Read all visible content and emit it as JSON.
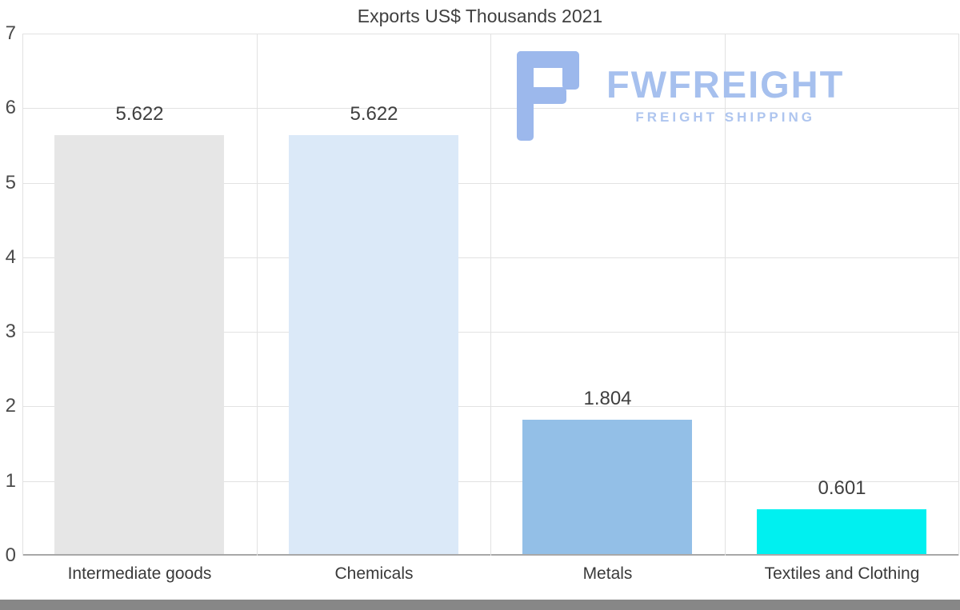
{
  "chart_data": {
    "type": "bar",
    "title": "Exports US$ Thousands 2021",
    "categories": [
      "Intermediate goods",
      "Chemicals",
      "Metals",
      "Textiles and Clothing"
    ],
    "values": [
      5.622,
      5.622,
      1.804,
      0.601
    ],
    "value_labels": [
      "5.622",
      "5.622",
      "1.804",
      "0.601"
    ],
    "bar_colors": [
      "#e6e6e6",
      "#dbe9f8",
      "#93bfe7",
      "#00f0f0"
    ],
    "ylim": [
      0,
      7
    ],
    "yticks": [
      0,
      1,
      2,
      3,
      4,
      5,
      6,
      7
    ],
    "grid": true,
    "legend": "none",
    "xlabel": "",
    "ylabel": ""
  },
  "watermark": {
    "brand": "FWFREIGHT",
    "tagline": "FREIGHT SHIPPING",
    "color": "#a6c0ee"
  }
}
